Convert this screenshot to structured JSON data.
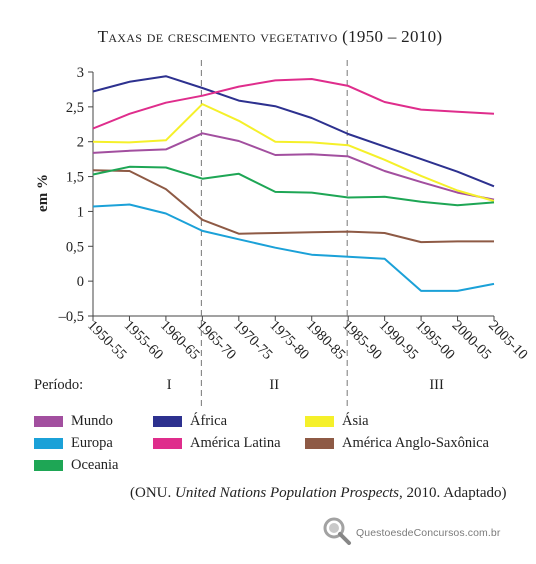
{
  "chart_data": {
    "type": "line",
    "title": "Taxas de crescimento vegetativo (1950 – 2010)",
    "ylabel": "em %",
    "xlabel": "",
    "ylim": [
      -0.5,
      3
    ],
    "yticks": [
      3,
      2.5,
      2,
      1.5,
      1,
      0.5,
      0,
      -0.5
    ],
    "ytick_labels": [
      "3",
      "2,5",
      "2",
      "1,5",
      "1",
      "0,5",
      "0",
      "–0,5"
    ],
    "categories": [
      "1950-55",
      "1955-60",
      "1960-65",
      "1965-70",
      "1970-75",
      "1975-80",
      "1980-85",
      "1985-90",
      "1990-95",
      "1995-00",
      "2000-05",
      "2005-10"
    ],
    "grid": false,
    "series": [
      {
        "name": "Mundo",
        "color": "#a24f9f",
        "values": [
          1.84,
          1.87,
          1.89,
          2.12,
          2.01,
          1.81,
          1.82,
          1.79,
          1.58,
          1.42,
          1.27,
          1.17
        ]
      },
      {
        "name": "África",
        "color": "#2d318f",
        "values": [
          2.72,
          2.86,
          2.94,
          2.77,
          2.59,
          2.51,
          2.34,
          2.11,
          1.93,
          1.75,
          1.57,
          1.36
        ]
      },
      {
        "name": "Ásia",
        "color": "#f5f02a",
        "values": [
          2.0,
          1.99,
          2.02,
          2.54,
          2.3,
          2.0,
          1.99,
          1.95,
          1.74,
          1.51,
          1.3,
          1.15
        ]
      },
      {
        "name": "Europa",
        "color": "#1ba1d8",
        "values": [
          1.07,
          1.1,
          0.97,
          0.72,
          0.6,
          0.48,
          0.38,
          0.35,
          0.32,
          -0.14,
          -0.14,
          -0.04
        ]
      },
      {
        "name": "América Latina",
        "color": "#df2d8c",
        "values": [
          2.19,
          2.4,
          2.56,
          2.66,
          2.79,
          2.88,
          2.9,
          2.8,
          2.57,
          2.46,
          2.43,
          2.4
        ]
      },
      {
        "name": "América Anglo-Saxônica",
        "color": "#8e5a45",
        "values": [
          1.59,
          1.58,
          1.32,
          0.88,
          0.68,
          0.69,
          0.7,
          0.71,
          0.69,
          0.56,
          0.57,
          0.57
        ]
      },
      {
        "name": "Oceania",
        "color": "#1ea655",
        "values": [
          1.53,
          1.64,
          1.63,
          1.47,
          1.54,
          1.28,
          1.27,
          1.2,
          1.21,
          1.14,
          1.09,
          1.13
        ]
      }
    ],
    "periods": {
      "label": "Período:",
      "items": [
        {
          "name": "I",
          "from": "1950-55",
          "to": "1965-70"
        },
        {
          "name": "II",
          "from": "1965-70",
          "to": "1985-90"
        },
        {
          "name": "III",
          "from": "1985-90",
          "to": "2005-10"
        }
      ]
    },
    "legend": [
      {
        "name": "Mundo",
        "color": "#a24f9f"
      },
      {
        "name": "África",
        "color": "#2d318f"
      },
      {
        "name": "Ásia",
        "color": "#f5f02a"
      },
      {
        "name": "Europa",
        "color": "#1ba1d8"
      },
      {
        "name": "América Latina",
        "color": "#df2d8c"
      },
      {
        "name": "América Anglo-Saxônica",
        "color": "#8e5a45"
      },
      {
        "name": "Oceania",
        "color": "#1ea655"
      }
    ]
  },
  "source": {
    "prefix": "(ONU. ",
    "work": "United Nations Population Prospects",
    "suffix": ", 2010. Adaptado)"
  },
  "watermark": {
    "text": "QuestoesdeConcursos.com.br",
    "icon": "magnifier-logo-icon"
  }
}
